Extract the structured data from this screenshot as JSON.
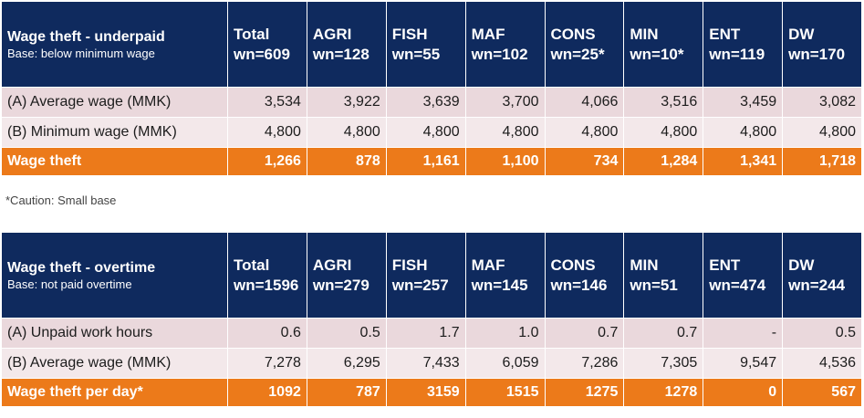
{
  "underpaid": {
    "title": "Wage theft - underpaid",
    "base": "Base: below minimum wage",
    "columns": [
      {
        "name": "Total",
        "wn": "wn=609"
      },
      {
        "name": "AGRI",
        "wn": "wn=128"
      },
      {
        "name": "FISH",
        "wn": "wn=55"
      },
      {
        "name": "MAF",
        "wn": "wn=102"
      },
      {
        "name": "CONS",
        "wn": "wn=25*"
      },
      {
        "name": "MIN",
        "wn": "wn=10*"
      },
      {
        "name": "ENT",
        "wn": "wn=119"
      },
      {
        "name": "DW",
        "wn": "wn=170"
      }
    ],
    "rows": [
      {
        "label": "(A) Average wage (MMK)",
        "values": [
          "3,534",
          "3,922",
          "3,639",
          "3,700",
          "4,066",
          "3,516",
          "3,459",
          "3,082"
        ]
      },
      {
        "label": "(B) Minimum wage (MMK)",
        "values": [
          "4,800",
          "4,800",
          "4,800",
          "4,800",
          "4,800",
          "4,800",
          "4,800",
          "4,800"
        ]
      },
      {
        "label": "Wage theft",
        "values": [
          "1,266",
          "878",
          "1,161",
          "1,100",
          "734",
          "1,284",
          "1,341",
          "1,718"
        ]
      }
    ]
  },
  "caution_note": "*Caution: Small base",
  "overtime": {
    "title": "Wage theft - overtime",
    "base": "Base: not paid overtime",
    "columns": [
      {
        "name": "Total",
        "wn": "wn=1596"
      },
      {
        "name": "AGRI",
        "wn": "wn=279"
      },
      {
        "name": "FISH",
        "wn": "wn=257"
      },
      {
        "name": "MAF",
        "wn": "wn=145"
      },
      {
        "name": "CONS",
        "wn": "wn=146"
      },
      {
        "name": "MIN",
        "wn": "wn=51"
      },
      {
        "name": "ENT",
        "wn": "wn=474"
      },
      {
        "name": "DW",
        "wn": "wn=244"
      }
    ],
    "rows": [
      {
        "label": "(A) Unpaid work hours",
        "values": [
          "0.6",
          "0.5",
          "1.7",
          "1.0",
          "0.7",
          "0.7",
          "-",
          "0.5"
        ]
      },
      {
        "label": "(B) Average wage (MMK)",
        "values": [
          "7,278",
          "6,295",
          "7,433",
          "6,059",
          "7,286",
          "7,305",
          "9,547",
          "4,536"
        ]
      },
      {
        "label": "Wage theft per day*",
        "values": [
          "1092",
          "787",
          "3159",
          "1515",
          "1275",
          "1278",
          "0",
          "567"
        ]
      }
    ]
  },
  "colors": {
    "header_bg": "#0f2a5e",
    "row_a_bg": "#ead8dc",
    "row_b_bg": "#f3e8ea",
    "total_row_bg": "#ec7a1a"
  }
}
